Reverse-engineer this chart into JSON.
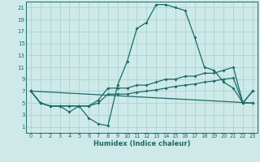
{
  "xlabel": "Humidex (Indice chaleur)",
  "xlim": [
    -0.5,
    23.5
  ],
  "ylim": [
    0,
    22
  ],
  "xticks": [
    0,
    1,
    2,
    3,
    4,
    5,
    6,
    7,
    8,
    9,
    10,
    11,
    12,
    13,
    14,
    15,
    16,
    17,
    18,
    19,
    20,
    21,
    22,
    23
  ],
  "yticks": [
    1,
    3,
    5,
    7,
    9,
    11,
    13,
    15,
    17,
    19,
    21
  ],
  "bg_color": "#ceeae8",
  "grid_color": "#aad4d0",
  "line_color": "#1a6b6b",
  "curve1_x": [
    0,
    1,
    2,
    3,
    4,
    5,
    6,
    7,
    8,
    9,
    10,
    11,
    12,
    13,
    14,
    15,
    16,
    17,
    18,
    19,
    20,
    21,
    22,
    23
  ],
  "curve1_y": [
    7,
    5,
    4.5,
    4.5,
    3.5,
    4.5,
    2.5,
    1.5,
    1.2,
    8,
    12,
    17.5,
    18.5,
    21.5,
    21.5,
    21,
    20.5,
    16,
    11,
    10.5,
    8.5,
    7.5,
    5,
    7
  ],
  "curve2_x": [
    0,
    1,
    2,
    3,
    4,
    5,
    6,
    7,
    8,
    9,
    10,
    11,
    12,
    13,
    14,
    15,
    16,
    17,
    18,
    19,
    20,
    21,
    22,
    23
  ],
  "curve2_y": [
    7,
    5,
    4.5,
    4.5,
    4.5,
    4.5,
    4.5,
    5.5,
    7.5,
    7.5,
    7.5,
    8,
    8,
    8.5,
    9,
    9,
    9.5,
    9.5,
    10,
    10,
    10.5,
    11,
    5,
    7
  ],
  "curve3_x": [
    0,
    1,
    2,
    3,
    4,
    5,
    6,
    7,
    8,
    9,
    10,
    11,
    12,
    13,
    14,
    15,
    16,
    17,
    18,
    19,
    20,
    21,
    22,
    23
  ],
  "curve3_y": [
    7,
    5,
    4.5,
    4.5,
    4.5,
    4.5,
    4.5,
    5.0,
    6.5,
    6.5,
    6.5,
    6.8,
    7.0,
    7.2,
    7.5,
    7.8,
    8.0,
    8.2,
    8.5,
    8.7,
    9.0,
    9.2,
    5,
    5
  ],
  "curve4_x": [
    0,
    23
  ],
  "curve4_y": [
    7,
    5
  ],
  "marker": "D",
  "markersize": 2.0,
  "linewidth": 0.9
}
